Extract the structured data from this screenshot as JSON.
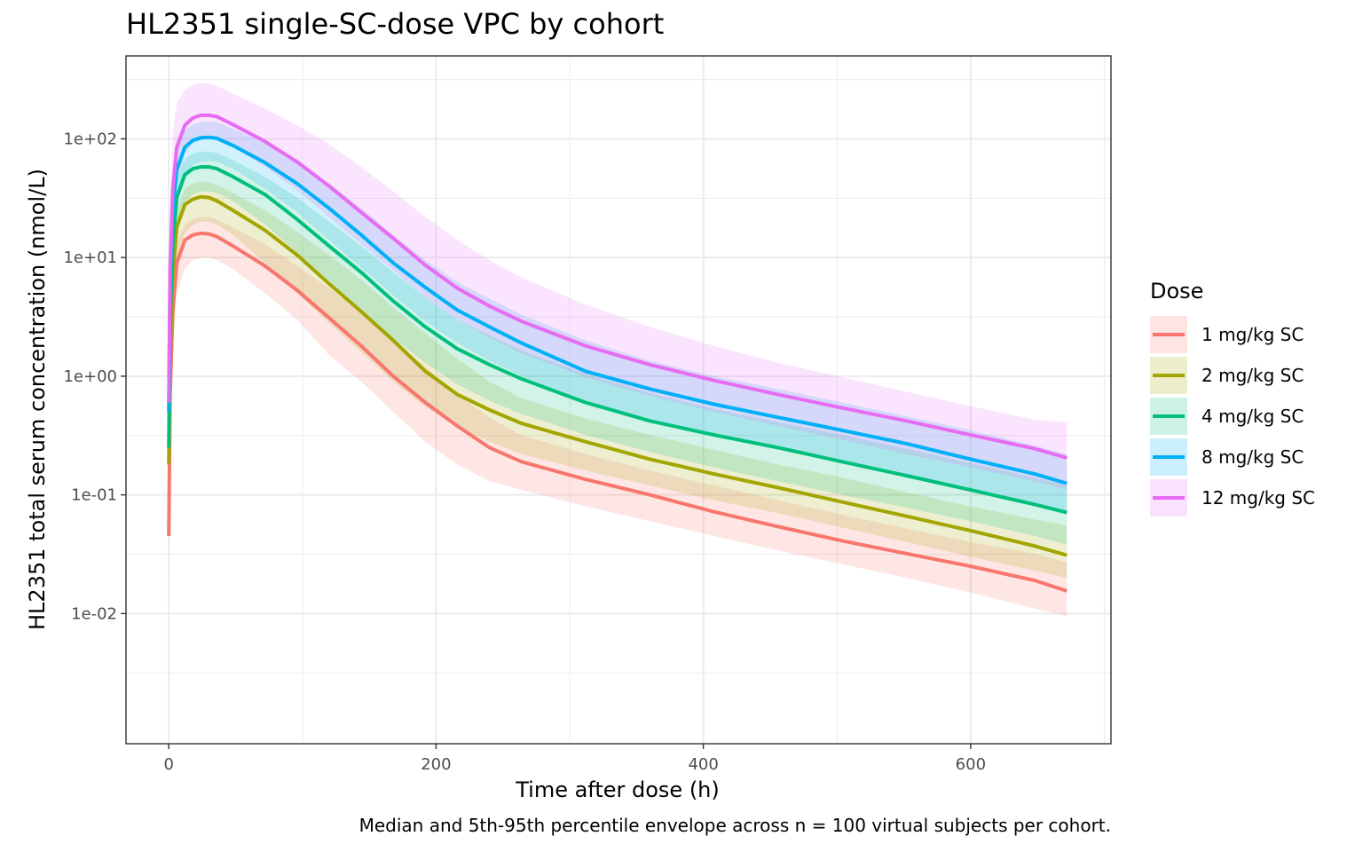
{
  "chart_data": {
    "type": "line",
    "title": "HL2351 single-SC-dose VPC by cohort",
    "xlabel": "Time after dose (h)",
    "ylabel": "HL2351 total serum concentration (nmol/L)",
    "caption": "Median and 5th-95th percentile envelope across n = 100 virtual subjects per cohort.",
    "legend_title": "Dose",
    "legend_position": "right",
    "x_scale": "linear",
    "y_scale": "log10",
    "xlim": [
      -32,
      705
    ],
    "ylim": [
      0.0008,
      500
    ],
    "x_ticks": [
      0,
      200,
      400,
      600
    ],
    "x_tick_labels": [
      "0",
      "200",
      "400",
      "600"
    ],
    "y_ticks": [
      0.01,
      0.1,
      1,
      10,
      100
    ],
    "y_tick_labels": [
      "1e-02",
      "1e-01",
      "1e+00",
      "1e+01",
      "1e+02"
    ],
    "grid": true,
    "x": [
      0,
      1,
      3,
      6,
      12,
      18,
      24,
      30,
      36,
      48,
      72,
      96,
      120,
      144,
      168,
      192,
      216,
      240,
      264,
      312,
      360,
      408,
      456,
      504,
      552,
      600,
      648,
      672
    ],
    "series": [
      {
        "name": "1 mg/kg SC",
        "color": "#F8766D",
        "median": [
          0.045,
          0.7,
          3.5,
          9.0,
          14.0,
          15.5,
          16.0,
          15.8,
          15.0,
          12.5,
          8.5,
          5.3,
          3.1,
          1.8,
          1.0,
          0.6,
          0.38,
          0.25,
          0.19,
          0.135,
          0.1,
          0.072,
          0.054,
          0.041,
          0.032,
          0.025,
          0.019,
          0.0155
        ],
        "p5": [
          0.02,
          0.3,
          1.8,
          5.0,
          8.0,
          9.5,
          10.0,
          10.0,
          9.5,
          8.0,
          5.0,
          3.0,
          1.5,
          0.9,
          0.5,
          0.28,
          0.18,
          0.13,
          0.11,
          0.08,
          0.06,
          0.045,
          0.034,
          0.026,
          0.02,
          0.015,
          0.011,
          0.0095
        ],
        "p95": [
          0.1,
          1.5,
          6.0,
          13.0,
          19.0,
          21.0,
          22.0,
          22.0,
          21.0,
          18.0,
          13.0,
          8.5,
          5.5,
          3.4,
          2.0,
          1.2,
          0.7,
          0.45,
          0.32,
          0.22,
          0.16,
          0.12,
          0.09,
          0.068,
          0.052,
          0.04,
          0.032,
          0.027
        ]
      },
      {
        "name": "2 mg/kg SC",
        "color": "#A3A500",
        "median": [
          0.18,
          1.5,
          7.0,
          18.0,
          28.0,
          31.0,
          32.5,
          32.0,
          30.0,
          25.0,
          17.0,
          10.5,
          6.0,
          3.5,
          2.0,
          1.1,
          0.7,
          0.52,
          0.4,
          0.28,
          0.2,
          0.15,
          0.115,
          0.087,
          0.066,
          0.05,
          0.037,
          0.031
        ],
        "p5": [
          0.08,
          0.6,
          3.5,
          10.0,
          16.0,
          19.0,
          20.0,
          20.0,
          19.0,
          15.5,
          9.0,
          5.0,
          2.8,
          1.6,
          0.9,
          0.55,
          0.37,
          0.28,
          0.22,
          0.16,
          0.12,
          0.09,
          0.07,
          0.053,
          0.04,
          0.03,
          0.023,
          0.02
        ],
        "p95": [
          0.35,
          3.0,
          12.0,
          26.0,
          38.0,
          42.0,
          44.0,
          43.0,
          41.0,
          35.0,
          25.0,
          16.5,
          10.5,
          6.5,
          3.8,
          2.3,
          1.4,
          0.9,
          0.65,
          0.44,
          0.32,
          0.24,
          0.18,
          0.14,
          0.105,
          0.08,
          0.062,
          0.055
        ]
      },
      {
        "name": "4 mg/kg SC",
        "color": "#00BF7D",
        "median": [
          0.25,
          3.0,
          13.0,
          32.0,
          50.0,
          56.0,
          58.0,
          58.0,
          56.0,
          48.0,
          34.0,
          21.0,
          12.5,
          7.5,
          4.3,
          2.6,
          1.7,
          1.25,
          0.95,
          0.6,
          0.42,
          0.32,
          0.25,
          0.19,
          0.145,
          0.11,
          0.083,
          0.071
        ],
        "p5": [
          0.12,
          1.2,
          6.5,
          18.0,
          29.0,
          34.0,
          36.0,
          36.0,
          35.0,
          30.0,
          19.0,
          11.0,
          6.0,
          3.6,
          2.1,
          1.3,
          0.85,
          0.62,
          0.48,
          0.32,
          0.23,
          0.17,
          0.13,
          0.1,
          0.078,
          0.06,
          0.045,
          0.038
        ],
        "p95": [
          0.5,
          6.0,
          22.0,
          48.0,
          68.0,
          75.0,
          78.0,
          78.0,
          76.0,
          66.0,
          48.0,
          32.0,
          20.0,
          12.5,
          7.5,
          4.6,
          3.0,
          2.2,
          1.65,
          1.05,
          0.72,
          0.53,
          0.41,
          0.32,
          0.245,
          0.185,
          0.14,
          0.12
        ]
      },
      {
        "name": "8 mg/kg SC",
        "color": "#00B0F6",
        "median": [
          0.5,
          6.0,
          25.0,
          55.0,
          85.0,
          97.0,
          102.0,
          103.0,
          101.0,
          88.0,
          63.0,
          42.0,
          26.0,
          15.5,
          9.0,
          5.6,
          3.6,
          2.6,
          1.9,
          1.1,
          0.78,
          0.58,
          0.45,
          0.35,
          0.27,
          0.2,
          0.15,
          0.125
        ],
        "p5": [
          0.22,
          2.5,
          12.0,
          30.0,
          50.0,
          60.0,
          64.0,
          65.0,
          64.0,
          56.0,
          38.0,
          24.0,
          14.0,
          8.2,
          4.8,
          2.9,
          1.9,
          1.35,
          1.0,
          0.6,
          0.42,
          0.31,
          0.24,
          0.19,
          0.145,
          0.11,
          0.085,
          0.072
        ],
        "p95": [
          0.9,
          11.0,
          40.0,
          85.0,
          118.0,
          132.0,
          138.0,
          140.0,
          138.0,
          122.0,
          92.0,
          64.0,
          42.0,
          26.0,
          15.5,
          9.5,
          6.2,
          4.5,
          3.3,
          2.0,
          1.35,
          1.0,
          0.78,
          0.6,
          0.46,
          0.35,
          0.26,
          0.22
        ]
      },
      {
        "name": "12 mg/kg SC",
        "color": "#E76BF3",
        "median": [
          0.6,
          8.0,
          38.0,
          85.0,
          130.0,
          150.0,
          158.0,
          158.0,
          154.0,
          132.0,
          95.0,
          64.0,
          40.0,
          24.0,
          14.5,
          8.6,
          5.5,
          3.9,
          2.9,
          1.8,
          1.25,
          0.92,
          0.7,
          0.54,
          0.42,
          0.32,
          0.245,
          0.205
        ],
        "p5": [
          0.3,
          3.5,
          18.0,
          45.0,
          75.0,
          92.0,
          98.0,
          100.0,
          98.0,
          85.0,
          58.0,
          37.0,
          22.0,
          13.0,
          7.8,
          4.6,
          3.0,
          2.1,
          1.55,
          0.98,
          0.68,
          0.5,
          0.38,
          0.29,
          0.22,
          0.17,
          0.13,
          0.11
        ],
        "p95": [
          1.5,
          25.0,
          110.0,
          200.0,
          260.0,
          285.0,
          295.0,
          290.0,
          280.0,
          240.0,
          180.0,
          130.0,
          90.0,
          58.0,
          36.0,
          22.0,
          14.0,
          9.5,
          6.8,
          4.0,
          2.6,
          1.8,
          1.3,
          0.98,
          0.74,
          0.56,
          0.43,
          0.41
        ]
      }
    ]
  }
}
